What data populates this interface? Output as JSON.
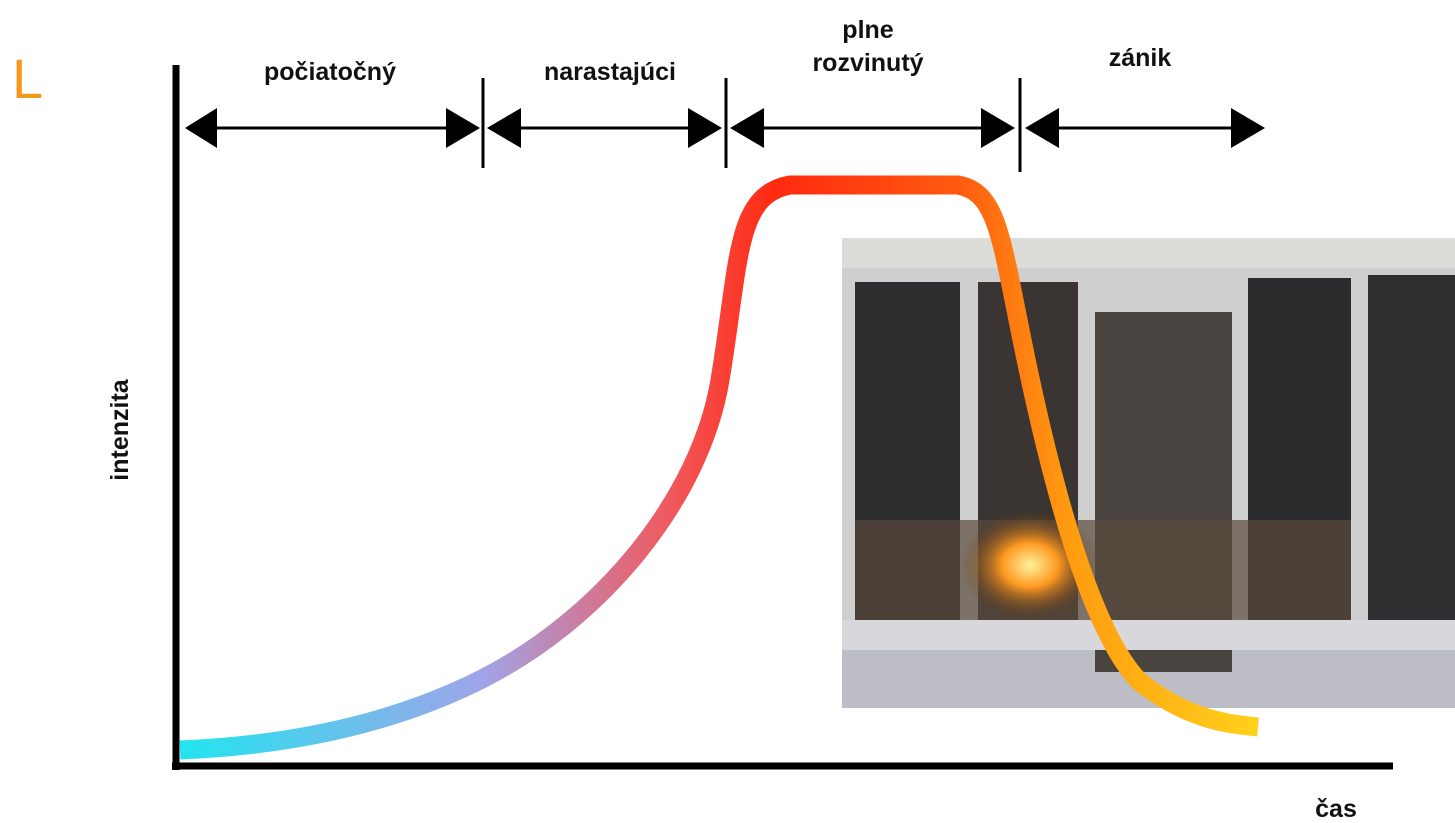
{
  "corner_mark": "L",
  "phases": [
    {
      "lines": [
        "počiatočný"
      ]
    },
    {
      "lines": [
        "narastajúci"
      ]
    },
    {
      "lines": [
        "plne",
        "rozvinutý"
      ]
    },
    {
      "lines": [
        "zánik"
      ]
    }
  ],
  "axes": {
    "y_label": "intenzita",
    "x_label": "čas"
  }
}
